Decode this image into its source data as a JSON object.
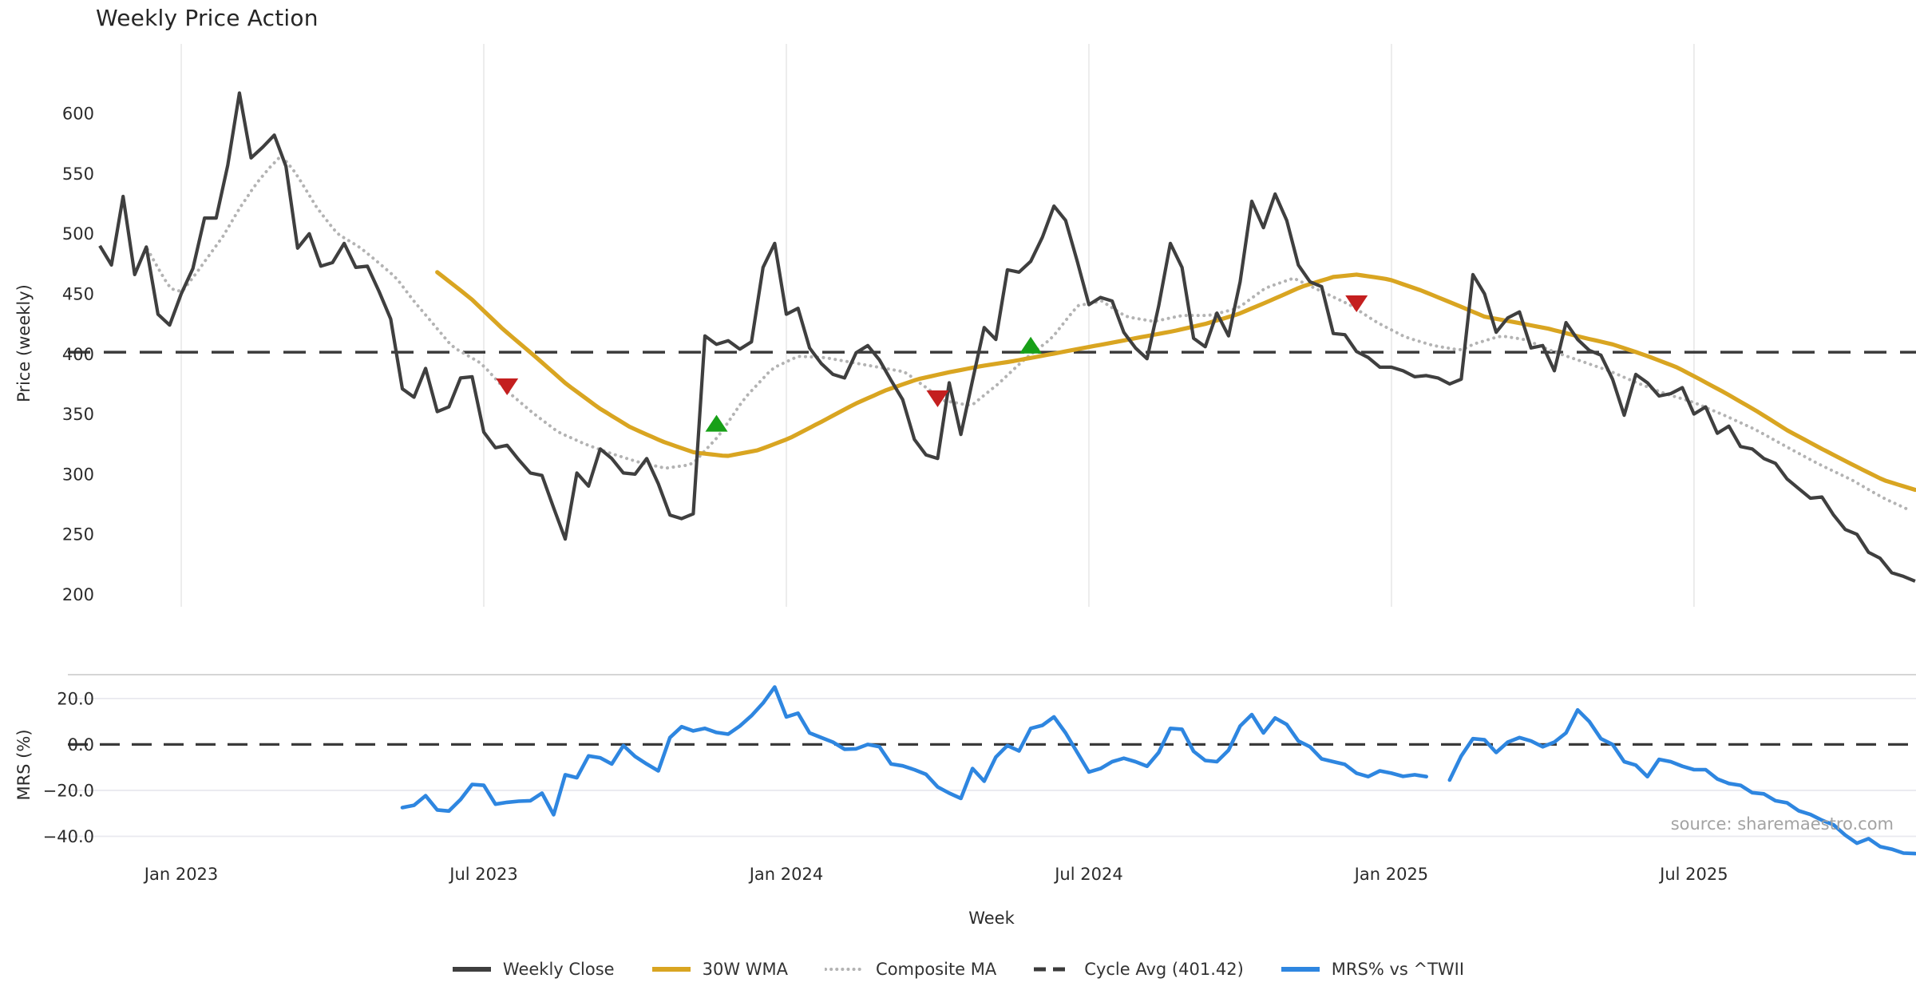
{
  "title": "Weekly Price Action",
  "source_note": "source: sharemaestro.com",
  "colors": {
    "close": "#3f3f3f",
    "wma": "#d9a521",
    "composite": "#b3b3b3",
    "cycle": "#3a3a3a",
    "mrs": "#2e86e0",
    "buy": "#18a018",
    "sell": "#c41f1f",
    "grid": "#e8e8e8",
    "grid_mrs": "#e9e9ef",
    "panel_border": "#cfcfcf",
    "tick": "#2b2b2b"
  },
  "legend": [
    {
      "label": "Weekly Close",
      "swatch": "solid",
      "color_key": "close"
    },
    {
      "label": "30W WMA",
      "swatch": "solid",
      "color_key": "wma"
    },
    {
      "label": "Composite MA",
      "swatch": "dotted",
      "color_key": "composite"
    },
    {
      "label": "Cycle Avg (401.42)",
      "swatch": "dashed",
      "color_key": "cycle"
    },
    {
      "label": "MRS% vs ^TWII",
      "swatch": "solid",
      "color_key": "mrs"
    }
  ],
  "chart_data": {
    "type": "line",
    "x_unit": "week",
    "x_start": "2022-11-13",
    "weeks_total": 157,
    "x": {
      "label": "Week",
      "ticks": [
        {
          "i": 7,
          "label": "Jan 2023"
        },
        {
          "i": 33,
          "label": "Jul 2023"
        },
        {
          "i": 59,
          "label": "Jan 2024"
        },
        {
          "i": 85,
          "label": "Jul 2024"
        },
        {
          "i": 111,
          "label": "Jan 2025"
        },
        {
          "i": 137,
          "label": "Jul 2025"
        }
      ]
    },
    "panels": [
      {
        "id": "price",
        "ylabel": "Price (weekly)",
        "yticks": [
          600,
          550,
          500,
          450,
          400,
          350,
          300,
          250,
          200
        ],
        "ylim": [
          190,
          658
        ],
        "grid": "vertical"
      },
      {
        "id": "mrs",
        "ylabel": "MRS (%)",
        "yticks": [
          20,
          0,
          -20,
          -40
        ],
        "ytick_labels": [
          "20.0",
          "0.0",
          "−20.0",
          "−40.0"
        ],
        "ylim": [
          -50,
          30
        ],
        "grid": "horizontal"
      }
    ],
    "series": {
      "weekly_close": {
        "name": "Weekly Close",
        "values": [
          490,
          474,
          531,
          466,
          489,
          433,
          424,
          450,
          471,
          513,
          513,
          557,
          617,
          563,
          572,
          582,
          556,
          488,
          500,
          473,
          476,
          492,
          472,
          473,
          452,
          429,
          371,
          364,
          388,
          352,
          356,
          380,
          381,
          335,
          322,
          324,
          312,
          301,
          299,
          272,
          246,
          301,
          290,
          321,
          313,
          301,
          300,
          313,
          292,
          266,
          263,
          267,
          415,
          408,
          411,
          404,
          410,
          472,
          492,
          433,
          438,
          405,
          392,
          383,
          380,
          401,
          407,
          395,
          378,
          362,
          329,
          316,
          313,
          376,
          333,
          378,
          422,
          412,
          470,
          468,
          477,
          497,
          523,
          511,
          477,
          441,
          447,
          444,
          418,
          405,
          396,
          440,
          492,
          472,
          413,
          406,
          434,
          415,
          460,
          527,
          505,
          533,
          511,
          474,
          460,
          456,
          417,
          416,
          402,
          397,
          389,
          389,
          386,
          381,
          382,
          380,
          375,
          379,
          466,
          450,
          418,
          430,
          435,
          405,
          407,
          386,
          426,
          412,
          403,
          399,
          379,
          349,
          383,
          376,
          365,
          367,
          372,
          350,
          356,
          334,
          340,
          323,
          321,
          313,
          309,
          296,
          288,
          280,
          281,
          266,
          254,
          250,
          235,
          230,
          218,
          215,
          211
        ]
      },
      "wma30": {
        "name": "30W WMA",
        "anchors_i": [
          29,
          31.9,
          34.6,
          37.4,
          40.1,
          42.9,
          45.6,
          48.4,
          51.1,
          53.9,
          56.6,
          59.3,
          62.1,
          64.8,
          67.6,
          70.3,
          73.1,
          75.8,
          78.5,
          81.3,
          84,
          86.8,
          89.5,
          92.3,
          95,
          97.8,
          100.5,
          103.3,
          106,
          108,
          110.8,
          113.5,
          116.3,
          119,
          121.8,
          124.5,
          127.3,
          130,
          132.8,
          135.5,
          137.1,
          139.6,
          142.3,
          145.1,
          147.8,
          150.6,
          153.3,
          156
        ],
        "anchors_v": [
          468,
          446,
          421,
          398,
          375,
          355,
          339,
          327,
          318,
          315,
          320,
          330,
          344,
          358,
          370,
          379,
          385,
          390,
          394,
          399,
          404,
          409,
          414,
          419,
          425,
          433,
          444,
          456,
          464,
          466,
          462,
          453,
          442,
          431,
          426,
          421,
          414,
          408,
          399,
          389,
          381,
          368,
          353,
          336,
          322,
          308,
          295,
          287
        ]
      },
      "composite_ma": {
        "name": "Composite MA",
        "anchors_i": [
          4.1,
          5.1,
          6,
          7,
          8.2,
          9.4,
          10.6,
          12,
          13.4,
          14.5,
          15.6,
          16.8,
          18.7,
          20.4,
          22.3,
          23.7,
          25.5,
          26.9,
          28.3,
          30.3,
          32.8,
          34.9,
          37.2,
          39.4,
          41.7,
          44,
          46.3,
          48.6,
          50.9,
          53.2,
          55.4,
          57.8,
          60,
          62.3,
          64.6,
          66.9,
          69.2,
          70.3,
          72.6,
          74.9,
          77.2,
          79.4,
          81.8,
          84,
          86.1,
          88.2,
          90.6,
          93,
          95.4,
          97.8,
          100.2,
          102.6,
          105,
          107.4,
          109.8,
          112.2,
          114.6,
          117,
          118,
          120.4,
          122.5,
          124.9,
          127.3,
          129.7,
          132.1,
          134.5,
          136.9,
          139.6,
          142.3,
          145.1,
          147.8,
          150.6,
          153.3,
          156
        ],
        "anchors_v": [
          487,
          470,
          455,
          451,
          466,
          482,
          498,
          521,
          541,
          554,
          565,
          551,
          521,
          500,
          489,
          478,
          463,
          445,
          429,
          406,
          392,
          370,
          351,
          335,
          325,
          317,
          310,
          305,
          308,
          332,
          363,
          388,
          398,
          397,
          393,
          389,
          385,
          377,
          361,
          357,
          375,
          395,
          413,
          440,
          444,
          431,
          427,
          432,
          432,
          438,
          455,
          463,
          452,
          441,
          426,
          414,
          407,
          403,
          408,
          415,
          412,
          402,
          394,
          386,
          376,
          367,
          360,
          349,
          337,
          322,
          308,
          295,
          280,
          268
        ]
      },
      "cycle_avg": {
        "name": "Cycle Avg (401.42)",
        "value": 401.42
      },
      "mrs": {
        "name": "MRS% vs ^TWII",
        "axis": "mrs",
        "values": [
          null,
          null,
          null,
          null,
          null,
          null,
          null,
          null,
          null,
          null,
          null,
          null,
          null,
          null,
          null,
          null,
          null,
          null,
          null,
          null,
          null,
          null,
          null,
          null,
          null,
          null,
          -27.5,
          -26.5,
          -22.3,
          -28.5,
          -29,
          -24,
          -17.4,
          -17.8,
          -26,
          -25.2,
          -24.7,
          -24.5,
          -21.2,
          -30.6,
          -13.2,
          -14.5,
          -5,
          -5.8,
          -8.5,
          -0.5,
          -5.2,
          -8.5,
          -11.5,
          3,
          7.7,
          5.9,
          7,
          5.2,
          4.5,
          8,
          12.5,
          18,
          25,
          12,
          13.6,
          5,
          3,
          1,
          -2.1,
          -1.9,
          0,
          -1,
          -8.5,
          -9.3,
          -11,
          -13,
          -18.5,
          -21.2,
          -23.5,
          -10.5,
          -16,
          -5.5,
          -0.5,
          -2.8,
          7,
          8.3,
          12,
          5,
          -3.5,
          -12,
          -10.5,
          -7.5,
          -6,
          -7.5,
          -9.5,
          -3.5,
          7,
          6.6,
          -3,
          -7,
          -7.5,
          -2.5,
          8,
          13,
          5,
          11.5,
          8.7,
          1.5,
          -1,
          -6.3,
          -7.5,
          -8.7,
          -12.5,
          -14,
          -11.5,
          -12.5,
          -13.9,
          -13.2,
          -14,
          null,
          -15.5,
          -5,
          2.5,
          2,
          -3.5,
          1,
          3,
          1.5,
          -1,
          1,
          5,
          15,
          10,
          2.5,
          0,
          -7.5,
          -9,
          -14,
          -6.5,
          -7.5,
          -9.5,
          -11,
          -11,
          -15,
          -17,
          -17.8,
          -21,
          -21.5,
          -24.5,
          -25.4,
          -28.9,
          -30.5,
          -33,
          -35,
          -39.5,
          -43,
          -41,
          -44.5,
          -45.6,
          -47.3,
          -47.5
        ]
      }
    },
    "markers": {
      "sell": [
        {
          "i": 35,
          "price": 373
        },
        {
          "i": 72,
          "price": 363
        },
        {
          "i": 108,
          "price": 442
        }
      ],
      "buy": [
        {
          "i": 53,
          "price": 342
        },
        {
          "i": 80,
          "price": 407
        }
      ]
    },
    "layout_hints": {
      "legend_position": "bottom-center",
      "price_grid": "vertical-only",
      "mrs_grid": "horizontal-only"
    }
  }
}
